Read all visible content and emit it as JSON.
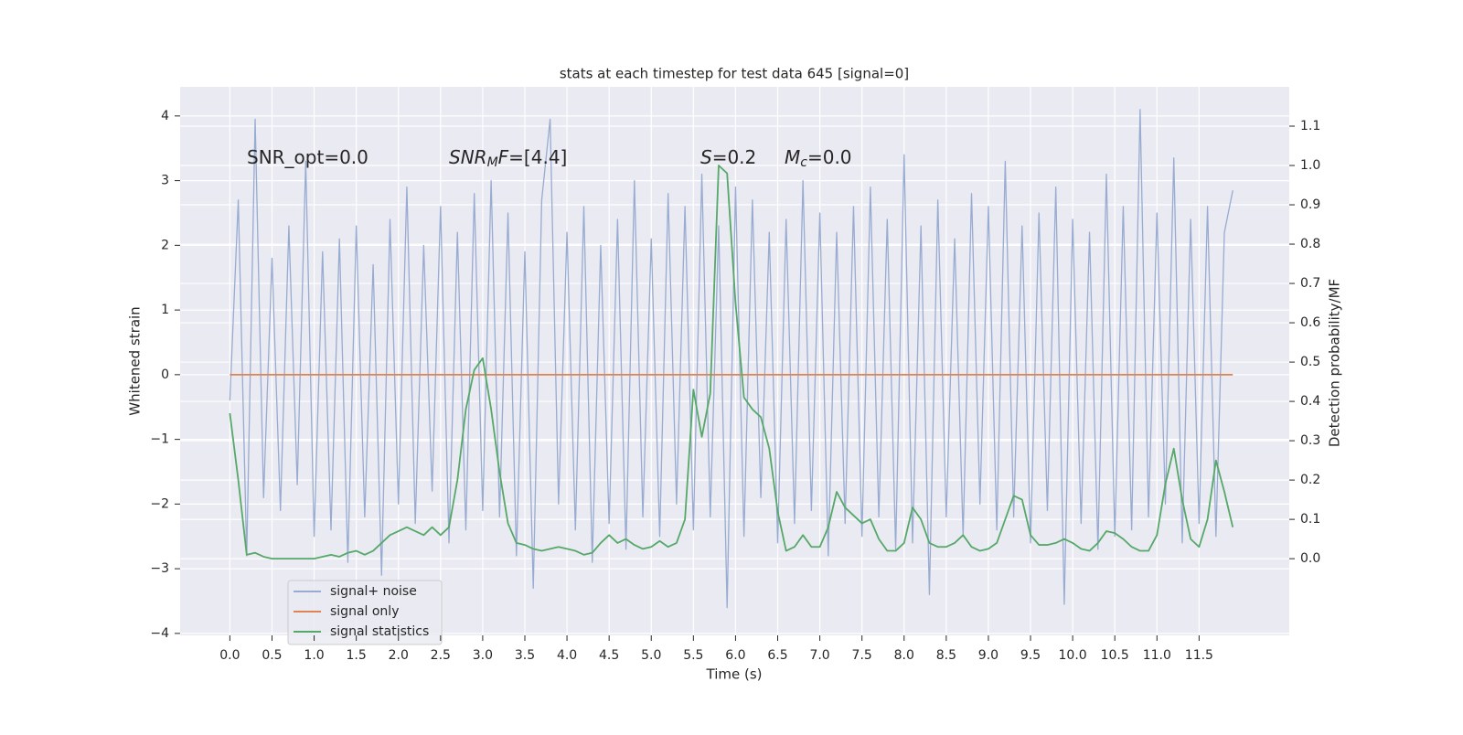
{
  "chart_data": {
    "type": "line",
    "title": "stats at each timestep for test data 645 [signal=0]",
    "xlabel": "Time (s)",
    "ylabel": "Whitened strain",
    "y2label": "Detection probability/MF",
    "grid": true,
    "legend": "lower left",
    "annotations": [
      [
        {
          "text": "SNR_opt=0.0"
        }
      ],
      [
        {
          "text": "SNR",
          "italic": true
        },
        {
          "text": "M",
          "italic": true,
          "sub": true
        },
        {
          "text": "F",
          "italic": true
        },
        {
          "text": "=[4.4]"
        }
      ],
      [
        {
          "text": "S",
          "italic": true
        },
        {
          "text": "=0.2"
        }
      ],
      [
        {
          "text": "M",
          "italic": true
        },
        {
          "text": "c",
          "italic": true,
          "sub": true
        },
        {
          "text": "=0.0"
        }
      ]
    ],
    "xlim": [
      -0.59,
      12.57
    ],
    "ylim": [
      -4.03,
      4.45
    ],
    "y2lim": [
      -0.195,
      1.2
    ],
    "xticks": [
      {
        "value": 0,
        "label": "0.0"
      },
      {
        "value": 0.5,
        "label": "0.5"
      },
      {
        "value": 1,
        "label": "1.0"
      },
      {
        "value": 1.5,
        "label": "1.5"
      },
      {
        "value": 2,
        "label": "2.0"
      },
      {
        "value": 2.5,
        "label": "2.5"
      },
      {
        "value": 3,
        "label": "3.0"
      },
      {
        "value": 3.5,
        "label": "3.5"
      },
      {
        "value": 4,
        "label": "4.0"
      },
      {
        "value": 4.5,
        "label": "4.5"
      },
      {
        "value": 5,
        "label": "5.0"
      },
      {
        "value": 5.5,
        "label": "5.5"
      },
      {
        "value": 6,
        "label": "6.0"
      },
      {
        "value": 6.5,
        "label": "6.5"
      },
      {
        "value": 7,
        "label": "7.0"
      },
      {
        "value": 7.5,
        "label": "7.5"
      },
      {
        "value": 8,
        "label": "8.0"
      },
      {
        "value": 8.5,
        "label": "8.5"
      },
      {
        "value": 9,
        "label": "9.0"
      },
      {
        "value": 9.5,
        "label": "9.5"
      },
      {
        "value": 10,
        "label": "10.0"
      },
      {
        "value": 10.5,
        "label": "10.5"
      },
      {
        "value": 11,
        "label": "11.0"
      },
      {
        "value": 11.5,
        "label": "11.5"
      }
    ],
    "yticks": [
      {
        "value": -4,
        "label": "−4"
      },
      {
        "value": -3,
        "label": "−3"
      },
      {
        "value": -2,
        "label": "−2"
      },
      {
        "value": -1,
        "label": "−1"
      },
      0,
      1,
      2,
      3,
      4
    ],
    "y2ticks": [
      {
        "value": 0,
        "label": "0.0"
      },
      {
        "value": 0.1,
        "label": "0.1"
      },
      {
        "value": 0.2,
        "label": "0.2"
      },
      {
        "value": 0.3,
        "label": "0.3"
      },
      {
        "value": 0.4,
        "label": "0.4"
      },
      {
        "value": 0.5,
        "label": "0.5"
      },
      {
        "value": 0.6,
        "label": "0.6"
      },
      {
        "value": 0.7,
        "label": "0.7"
      },
      {
        "value": 0.8,
        "label": "0.8"
      },
      {
        "value": 0.9,
        "label": "0.9"
      },
      {
        "value": 1,
        "label": "1.0"
      },
      {
        "value": 1.1,
        "label": "1.1"
      }
    ],
    "x": [
      0,
      0.1,
      0.2,
      0.3,
      0.4,
      0.5,
      0.6,
      0.7,
      0.8,
      0.9,
      1,
      1.1,
      1.2,
      1.3,
      1.4,
      1.5,
      1.6,
      1.7,
      1.8,
      1.9,
      2,
      2.1,
      2.2,
      2.3,
      2.4,
      2.5,
      2.6,
      2.7,
      2.8,
      2.9,
      3,
      3.1,
      3.2,
      3.3,
      3.4,
      3.5,
      3.6,
      3.7,
      3.8,
      3.9,
      4,
      4.1,
      4.2,
      4.3,
      4.4,
      4.5,
      4.6,
      4.7,
      4.8,
      4.9,
      5,
      5.1,
      5.2,
      5.3,
      5.4,
      5.5,
      5.6,
      5.7,
      5.8,
      5.9,
      6,
      6.1,
      6.2,
      6.3,
      6.4,
      6.5,
      6.6,
      6.7,
      6.8,
      6.9,
      7,
      7.1,
      7.2,
      7.3,
      7.4,
      7.5,
      7.6,
      7.7,
      7.8,
      7.9,
      8,
      8.1,
      8.2,
      8.3,
      8.4,
      8.5,
      8.6,
      8.7,
      8.8,
      8.9,
      9,
      9.1,
      9.2,
      9.3,
      9.4,
      9.5,
      9.6,
      9.7,
      9.8,
      9.9,
      10,
      10.1,
      10.2,
      10.3,
      10.4,
      10.5,
      10.6,
      10.7,
      10.8,
      10.9,
      11,
      11.1,
      11.2,
      11.3,
      11.4,
      11.5,
      11.6,
      11.7,
      11.8,
      11.9
    ],
    "series": [
      {
        "name": "signal+ noise",
        "color": "#98abd0",
        "values": [
          -0.4,
          2.7,
          -2.8,
          3.95,
          -1.9,
          1.8,
          -2.1,
          2.3,
          -1.7,
          3.3,
          -2.5,
          1.9,
          -2.4,
          2.1,
          -2.9,
          2.3,
          -2.2,
          1.7,
          -3.1,
          2.4,
          -2.0,
          2.9,
          -2.3,
          2.0,
          -1.8,
          2.6,
          -2.6,
          2.2,
          -2.4,
          2.8,
          -2.1,
          3.0,
          -2.2,
          2.5,
          -2.8,
          1.9,
          -3.3,
          2.7,
          3.95,
          -2.0,
          2.2,
          -2.4,
          2.6,
          -2.9,
          2.0,
          -2.3,
          2.4,
          -2.7,
          3.0,
          -2.2,
          2.1,
          -2.5,
          2.8,
          -2.0,
          2.6,
          -2.4,
          3.1,
          -2.2,
          2.3,
          -3.6,
          2.9,
          -2.5,
          2.7,
          -1.9,
          2.2,
          -2.6,
          2.4,
          -2.3,
          3.0,
          -2.1,
          2.5,
          -2.8,
          2.2,
          -2.3,
          2.6,
          -2.5,
          2.9,
          -2.2,
          2.4,
          -2.7,
          3.4,
          -2.6,
          2.3,
          -3.4,
          2.7,
          -2.2,
          2.1,
          -2.5,
          2.8,
          -2.0,
          2.6,
          -2.4,
          3.3,
          -2.2,
          2.3,
          -2.6,
          2.5,
          -2.1,
          2.9,
          -3.55,
          2.4,
          -2.3,
          2.2,
          -2.7,
          3.1,
          -2.5,
          2.6,
          -2.4,
          4.1,
          -2.2,
          2.5,
          -2.0,
          3.35,
          -2.6,
          2.4,
          -2.3,
          2.6,
          -2.5,
          2.2,
          2.85
        ]
      },
      {
        "name": "signal only",
        "color": "#dd8452",
        "x": [
          0,
          11.9
        ],
        "values": [
          0,
          0
        ]
      },
      {
        "name": "signal statistics",
        "color": "#55a868",
        "axis": "y2",
        "values": [
          0.37,
          0.2,
          0.01,
          0.015,
          0.005,
          0,
          0,
          0,
          0,
          0,
          0,
          0.005,
          0.01,
          0.005,
          0.015,
          0.02,
          0.01,
          0.02,
          0.04,
          0.06,
          0.07,
          0.08,
          0.07,
          0.06,
          0.08,
          0.06,
          0.08,
          0.2,
          0.38,
          0.48,
          0.51,
          0.38,
          0.22,
          0.09,
          0.04,
          0.035,
          0.025,
          0.02,
          0.025,
          0.03,
          0.025,
          0.02,
          0.01,
          0.015,
          0.04,
          0.06,
          0.04,
          0.05,
          0.035,
          0.025,
          0.03,
          0.045,
          0.03,
          0.04,
          0.1,
          0.43,
          0.31,
          0.42,
          1.0,
          0.98,
          0.65,
          0.41,
          0.38,
          0.36,
          0.28,
          0.12,
          0.02,
          0.03,
          0.06,
          0.03,
          0.03,
          0.08,
          0.17,
          0.13,
          0.11,
          0.09,
          0.1,
          0.05,
          0.02,
          0.02,
          0.04,
          0.13,
          0.1,
          0.04,
          0.03,
          0.03,
          0.04,
          0.06,
          0.03,
          0.02,
          0.025,
          0.04,
          0.1,
          0.16,
          0.15,
          0.06,
          0.035,
          0.035,
          0.04,
          0.05,
          0.04,
          0.025,
          0.02,
          0.04,
          0.07,
          0.065,
          0.05,
          0.03,
          0.02,
          0.02,
          0.06,
          0.19,
          0.28,
          0.15,
          0.05,
          0.03,
          0.1,
          0.25,
          0.17,
          0.08
        ]
      }
    ]
  }
}
